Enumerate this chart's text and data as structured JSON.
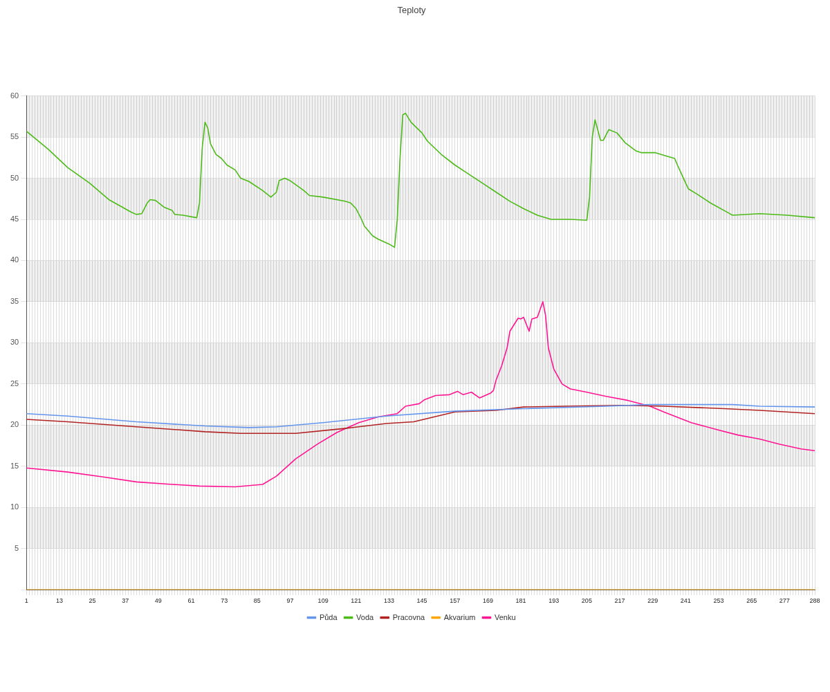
{
  "chart_data": {
    "type": "line",
    "title": "Teploty",
    "xlim": [
      1,
      288
    ],
    "xticks": [
      1,
      {
        "value": 2,
        "label": null
      },
      {
        "value": 3,
        "label": null
      },
      {
        "value": 4,
        "label": null
      },
      {
        "value": 5,
        "label": null
      },
      {
        "value": 6,
        "label": null
      },
      {
        "value": 7,
        "label": null
      },
      {
        "value": 8,
        "label": null
      },
      {
        "value": 9,
        "label": null
      },
      {
        "value": 10,
        "label": null
      },
      {
        "value": 11,
        "label": null
      },
      {
        "value": 12,
        "label": null
      },
      13,
      {
        "value": 14,
        "label": null
      },
      {
        "value": 15,
        "label": null
      },
      {
        "value": 16,
        "label": null
      },
      {
        "value": 17,
        "label": null
      },
      {
        "value": 18,
        "label": null
      },
      {
        "value": 19,
        "label": null
      },
      {
        "value": 20,
        "label": null
      },
      {
        "value": 21,
        "label": null
      },
      {
        "value": 22,
        "label": null
      },
      {
        "value": 23,
        "label": null
      },
      {
        "value": 24,
        "label": null
      },
      25,
      {
        "value": 26,
        "label": null
      },
      {
        "value": 27,
        "label": null
      },
      {
        "value": 28,
        "label": null
      },
      {
        "value": 29,
        "label": null
      },
      {
        "value": 30,
        "label": null
      },
      {
        "value": 31,
        "label": null
      },
      {
        "value": 32,
        "label": null
      },
      {
        "value": 33,
        "label": null
      },
      {
        "value": 34,
        "label": null
      },
      {
        "value": 35,
        "label": null
      },
      {
        "value": 36,
        "label": null
      },
      37,
      {
        "value": 38,
        "label": null
      },
      {
        "value": 39,
        "label": null
      },
      {
        "value": 40,
        "label": null
      },
      {
        "value": 41,
        "label": null
      },
      {
        "value": 42,
        "label": null
      },
      {
        "value": 43,
        "label": null
      },
      {
        "value": 44,
        "label": null
      },
      {
        "value": 45,
        "label": null
      },
      {
        "value": 46,
        "label": null
      },
      {
        "value": 47,
        "label": null
      },
      {
        "value": 48,
        "label": null
      },
      49,
      {
        "value": 50,
        "label": null
      },
      {
        "value": 51,
        "label": null
      },
      {
        "value": 52,
        "label": null
      },
      {
        "value": 53,
        "label": null
      },
      {
        "value": 54,
        "label": null
      },
      {
        "value": 55,
        "label": null
      },
      {
        "value": 56,
        "label": null
      },
      {
        "value": 57,
        "label": null
      },
      {
        "value": 58,
        "label": null
      },
      {
        "value": 59,
        "label": null
      },
      {
        "value": 60,
        "label": null
      },
      61,
      {
        "value": 62,
        "label": null
      },
      {
        "value": 63,
        "label": null
      },
      {
        "value": 64,
        "label": null
      },
      {
        "value": 65,
        "label": null
      },
      {
        "value": 66,
        "label": null
      },
      {
        "value": 67,
        "label": null
      },
      {
        "value": 68,
        "label": null
      },
      {
        "value": 69,
        "label": null
      },
      {
        "value": 70,
        "label": null
      },
      {
        "value": 71,
        "label": null
      },
      {
        "value": 72,
        "label": null
      },
      73,
      {
        "value": 74,
        "label": null
      },
      {
        "value": 75,
        "label": null
      },
      {
        "value": 76,
        "label": null
      },
      {
        "value": 77,
        "label": null
      },
      {
        "value": 78,
        "label": null
      },
      {
        "value": 79,
        "label": null
      },
      {
        "value": 80,
        "label": null
      },
      {
        "value": 81,
        "label": null
      },
      {
        "value": 82,
        "label": null
      },
      {
        "value": 83,
        "label": null
      },
      {
        "value": 84,
        "label": null
      },
      85,
      {
        "value": 86,
        "label": null
      },
      {
        "value": 87,
        "label": null
      },
      {
        "value": 88,
        "label": null
      },
      {
        "value": 89,
        "label": null
      },
      {
        "value": 90,
        "label": null
      },
      {
        "value": 91,
        "label": null
      },
      {
        "value": 92,
        "label": null
      },
      {
        "value": 93,
        "label": null
      },
      {
        "value": 94,
        "label": null
      },
      {
        "value": 95,
        "label": null
      },
      {
        "value": 96,
        "label": null
      },
      97,
      {
        "value": 98,
        "label": null
      },
      {
        "value": 99,
        "label": null
      },
      {
        "value": 100,
        "label": null
      },
      {
        "value": 101,
        "label": null
      },
      {
        "value": 102,
        "label": null
      },
      {
        "value": 103,
        "label": null
      },
      {
        "value": 104,
        "label": null
      },
      {
        "value": 105,
        "label": null
      },
      {
        "value": 106,
        "label": null
      },
      {
        "value": 107,
        "label": null
      },
      {
        "value": 108,
        "label": null
      },
      109,
      {
        "value": 110,
        "label": null
      },
      {
        "value": 111,
        "label": null
      },
      {
        "value": 112,
        "label": null
      },
      {
        "value": 113,
        "label": null
      },
      {
        "value": 114,
        "label": null
      },
      {
        "value": 115,
        "label": null
      },
      {
        "value": 116,
        "label": null
      },
      {
        "value": 117,
        "label": null
      },
      {
        "value": 118,
        "label": null
      },
      {
        "value": 119,
        "label": null
      },
      {
        "value": 120,
        "label": null
      },
      121,
      {
        "value": 122,
        "label": null
      },
      {
        "value": 123,
        "label": null
      },
      {
        "value": 124,
        "label": null
      },
      {
        "value": 125,
        "label": null
      },
      {
        "value": 126,
        "label": null
      },
      {
        "value": 127,
        "label": null
      },
      {
        "value": 128,
        "label": null
      },
      {
        "value": 129,
        "label": null
      },
      {
        "value": 130,
        "label": null
      },
      {
        "value": 131,
        "label": null
      },
      {
        "value": 132,
        "label": null
      },
      133,
      {
        "value": 134,
        "label": null
      },
      {
        "value": 135,
        "label": null
      },
      {
        "value": 136,
        "label": null
      },
      {
        "value": 137,
        "label": null
      },
      {
        "value": 138,
        "label": null
      },
      {
        "value": 139,
        "label": null
      },
      {
        "value": 140,
        "label": null
      },
      {
        "value": 141,
        "label": null
      },
      {
        "value": 142,
        "label": null
      },
      {
        "value": 143,
        "label": null
      },
      {
        "value": 144,
        "label": null
      },
      145,
      {
        "value": 146,
        "label": null
      },
      {
        "value": 147,
        "label": null
      },
      {
        "value": 148,
        "label": null
      },
      {
        "value": 149,
        "label": null
      },
      {
        "value": 150,
        "label": null
      },
      {
        "value": 151,
        "label": null
      },
      {
        "value": 152,
        "label": null
      },
      {
        "value": 153,
        "label": null
      },
      {
        "value": 154,
        "label": null
      },
      {
        "value": 155,
        "label": null
      },
      {
        "value": 156,
        "label": null
      },
      157,
      {
        "value": 158,
        "label": null
      },
      {
        "value": 159,
        "label": null
      },
      {
        "value": 160,
        "label": null
      },
      {
        "value": 161,
        "label": null
      },
      {
        "value": 162,
        "label": null
      },
      {
        "value": 163,
        "label": null
      },
      {
        "value": 164,
        "label": null
      },
      {
        "value": 165,
        "label": null
      },
      {
        "value": 166,
        "label": null
      },
      {
        "value": 167,
        "label": null
      },
      {
        "value": 168,
        "label": null
      },
      169,
      {
        "value": 170,
        "label": null
      },
      {
        "value": 171,
        "label": null
      },
      {
        "value": 172,
        "label": null
      },
      {
        "value": 173,
        "label": null
      },
      {
        "value": 174,
        "label": null
      },
      {
        "value": 175,
        "label": null
      },
      {
        "value": 176,
        "label": null
      },
      {
        "value": 177,
        "label": null
      },
      {
        "value": 178,
        "label": null
      },
      {
        "value": 179,
        "label": null
      },
      {
        "value": 180,
        "label": null
      },
      181,
      {
        "value": 182,
        "label": null
      },
      {
        "value": 183,
        "label": null
      },
      {
        "value": 184,
        "label": null
      },
      {
        "value": 185,
        "label": null
      },
      {
        "value": 186,
        "label": null
      },
      {
        "value": 187,
        "label": null
      },
      {
        "value": 188,
        "label": null
      },
      {
        "value": 189,
        "label": null
      },
      {
        "value": 190,
        "label": null
      },
      {
        "value": 191,
        "label": null
      },
      {
        "value": 192,
        "label": null
      },
      193,
      {
        "value": 194,
        "label": null
      },
      {
        "value": 195,
        "label": null
      },
      {
        "value": 196,
        "label": null
      },
      {
        "value": 197,
        "label": null
      },
      {
        "value": 198,
        "label": null
      },
      {
        "value": 199,
        "label": null
      },
      {
        "value": 200,
        "label": null
      },
      {
        "value": 201,
        "label": null
      },
      {
        "value": 202,
        "label": null
      },
      {
        "value": 203,
        "label": null
      },
      {
        "value": 204,
        "label": null
      },
      205,
      {
        "value": 206,
        "label": null
      },
      {
        "value": 207,
        "label": null
      },
      {
        "value": 208,
        "label": null
      },
      {
        "value": 209,
        "label": null
      },
      {
        "value": 210,
        "label": null
      },
      {
        "value": 211,
        "label": null
      },
      {
        "value": 212,
        "label": null
      },
      {
        "value": 213,
        "label": null
      },
      {
        "value": 214,
        "label": null
      },
      {
        "value": 215,
        "label": null
      },
      {
        "value": 216,
        "label": null
      },
      217,
      {
        "value": 218,
        "label": null
      },
      {
        "value": 219,
        "label": null
      },
      {
        "value": 220,
        "label": null
      },
      {
        "value": 221,
        "label": null
      },
      {
        "value": 222,
        "label": null
      },
      {
        "value": 223,
        "label": null
      },
      {
        "value": 224,
        "label": null
      },
      {
        "value": 225,
        "label": null
      },
      {
        "value": 226,
        "label": null
      },
      {
        "value": 227,
        "label": null
      },
      {
        "value": 228,
        "label": null
      },
      229,
      {
        "value": 230,
        "label": null
      },
      {
        "value": 231,
        "label": null
      },
      {
        "value": 232,
        "label": null
      },
      {
        "value": 233,
        "label": null
      },
      {
        "value": 234,
        "label": null
      },
      {
        "value": 235,
        "label": null
      },
      {
        "value": 236,
        "label": null
      },
      {
        "value": 237,
        "label": null
      },
      {
        "value": 238,
        "label": null
      },
      {
        "value": 239,
        "label": null
      },
      {
        "value": 240,
        "label": null
      },
      241,
      {
        "value": 242,
        "label": null
      },
      {
        "value": 243,
        "label": null
      },
      {
        "value": 244,
        "label": null
      },
      {
        "value": 245,
        "label": null
      },
      {
        "value": 246,
        "label": null
      },
      {
        "value": 247,
        "label": null
      },
      {
        "value": 248,
        "label": null
      },
      {
        "value": 249,
        "label": null
      },
      {
        "value": 250,
        "label": null
      },
      {
        "value": 251,
        "label": null
      },
      {
        "value": 252,
        "label": null
      },
      253,
      {
        "value": 254,
        "label": null
      },
      {
        "value": 255,
        "label": null
      },
      {
        "value": 256,
        "label": null
      },
      {
        "value": 257,
        "label": null
      },
      {
        "value": 258,
        "label": null
      },
      {
        "value": 259,
        "label": null
      },
      {
        "value": 260,
        "label": null
      },
      {
        "value": 261,
        "label": null
      },
      {
        "value": 262,
        "label": null
      },
      {
        "value": 263,
        "label": null
      },
      {
        "value": 264,
        "label": null
      },
      265,
      {
        "value": 266,
        "label": null
      },
      {
        "value": 267,
        "label": null
      },
      {
        "value": 268,
        "label": null
      },
      {
        "value": 269,
        "label": null
      },
      {
        "value": 270,
        "label": null
      },
      {
        "value": 271,
        "label": null
      },
      {
        "value": 272,
        "label": null
      },
      {
        "value": 273,
        "label": null
      },
      {
        "value": 274,
        "label": null
      },
      {
        "value": 275,
        "label": null
      },
      {
        "value": 276,
        "label": null
      },
      277,
      {
        "value": 278,
        "label": null
      },
      {
        "value": 279,
        "label": null
      },
      {
        "value": 280,
        "label": null
      },
      {
        "value": 281,
        "label": null
      },
      {
        "value": 282,
        "label": null
      },
      {
        "value": 283,
        "label": null
      },
      {
        "value": 284,
        "label": null
      },
      {
        "value": 285,
        "label": null
      },
      {
        "value": 286,
        "label": null
      },
      {
        "value": 287,
        "label": null
      },
      288
    ],
    "ylim": [
      0,
      60
    ],
    "yticks": [
      {
        "value": 0,
        "label": null
      },
      5,
      10,
      15,
      20,
      25,
      30,
      35,
      40,
      45,
      50,
      55,
      60
    ],
    "grid": true,
    "legend": "bottom",
    "marker": "none",
    "line_style": "solid",
    "series": [
      {
        "name": "Půda",
        "color": "#6495ed",
        "x": [
          1,
          16,
          41,
          66,
          82,
          92,
          109,
          132,
          157,
          182,
          212,
          228,
          258,
          268,
          288
        ],
        "values": [
          21.4,
          21.1,
          20.4,
          19.9,
          19.7,
          19.8,
          20.3,
          21.1,
          21.7,
          22.0,
          22.3,
          22.5,
          22.5,
          22.3,
          22.2
        ]
      },
      {
        "name": "Voda",
        "color": "#4cbb17",
        "x": [
          1,
          9,
          16,
          24,
          31,
          39,
          41,
          43,
          45,
          46,
          48,
          51,
          54,
          55,
          58,
          63,
          64,
          65,
          66,
          67,
          68,
          70,
          72,
          74,
          77,
          79,
          82,
          87,
          90,
          92,
          93,
          95,
          97,
          102,
          104,
          109,
          117,
          119,
          121,
          123,
          124,
          127,
          129,
          133,
          135,
          136,
          137,
          138,
          139,
          141,
          145,
          147,
          152,
          157,
          162,
          167,
          172,
          177,
          182,
          187,
          192,
          199,
          205,
          206,
          207,
          208,
          210,
          211,
          213,
          216,
          219,
          223,
          225,
          230,
          234,
          237,
          238,
          241,
          242,
          245,
          250,
          257,
          258,
          268,
          278,
          288
        ],
        "values": [
          55.7,
          53.5,
          51.3,
          49.4,
          47.4,
          45.9,
          45.6,
          45.7,
          47.0,
          47.4,
          47.3,
          46.5,
          46.1,
          45.6,
          45.5,
          45.2,
          47.0,
          53.7,
          56.8,
          56.1,
          54.2,
          52.9,
          52.4,
          51.6,
          51.0,
          50.0,
          49.6,
          48.5,
          47.7,
          48.3,
          49.7,
          50.0,
          49.7,
          48.5,
          47.9,
          47.7,
          47.2,
          47.0,
          46.3,
          45.0,
          44.2,
          43.0,
          42.6,
          42.0,
          41.6,
          45.0,
          52.4,
          57.7,
          57.9,
          56.8,
          55.5,
          54.5,
          52.9,
          51.6,
          50.5,
          49.4,
          48.3,
          47.2,
          46.3,
          45.5,
          45.0,
          45.0,
          44.9,
          47.7,
          55.0,
          57.1,
          54.6,
          54.6,
          55.9,
          55.5,
          54.3,
          53.3,
          53.1,
          53.1,
          52.7,
          52.4,
          51.6,
          49.4,
          48.7,
          48.1,
          47.0,
          45.7,
          45.5,
          45.7,
          45.5,
          45.2
        ]
      },
      {
        "name": "Pracovna",
        "color": "#b22222",
        "x": [
          1,
          16,
          41,
          66,
          79,
          99,
          117,
          132,
          142,
          157,
          172,
          182,
          197,
          218,
          233,
          255,
          268,
          288
        ],
        "values": [
          20.7,
          20.4,
          19.8,
          19.2,
          19.0,
          19.0,
          19.6,
          20.2,
          20.4,
          21.6,
          21.8,
          22.2,
          22.3,
          22.4,
          22.3,
          22.0,
          21.8,
          21.4
        ]
      },
      {
        "name": "Akvarium",
        "color": "#ffa500",
        "x": [
          1,
          288
        ],
        "values": [
          0,
          0
        ]
      },
      {
        "name": "Venku",
        "color": "#ff1493",
        "x": [
          1,
          16,
          29,
          41,
          54,
          64,
          77,
          87,
          92,
          99,
          107,
          114,
          122,
          129,
          136,
          139,
          144,
          146,
          150,
          155,
          158,
          160,
          163,
          166,
          170,
          171,
          172,
          174,
          176,
          177,
          180,
          181,
          182,
          184,
          185,
          187,
          189,
          190,
          191,
          193,
          196,
          199,
          205,
          212,
          220,
          228,
          233,
          243,
          253,
          260,
          268,
          275,
          283,
          288
        ],
        "values": [
          14.8,
          14.3,
          13.7,
          13.1,
          12.8,
          12.6,
          12.5,
          12.8,
          13.8,
          15.9,
          17.7,
          19.1,
          20.3,
          21.0,
          21.4,
          22.3,
          22.6,
          23.1,
          23.6,
          23.7,
          24.1,
          23.7,
          24.0,
          23.3,
          23.9,
          24.2,
          25.5,
          27.2,
          29.4,
          31.4,
          33.0,
          32.9,
          33.1,
          31.4,
          32.9,
          33.1,
          35.0,
          33.3,
          29.4,
          26.8,
          25.0,
          24.4,
          24.0,
          23.5,
          23.0,
          22.3,
          21.6,
          20.3,
          19.4,
          18.8,
          18.3,
          17.7,
          17.1,
          16.9
        ]
      }
    ]
  }
}
